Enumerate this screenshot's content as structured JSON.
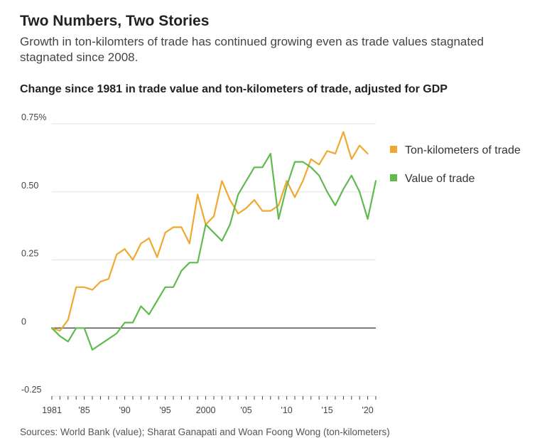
{
  "header": {
    "title": "Two Numbers, Two Stories",
    "subtitle": "Growth in ton-kilomters of trade has continued growing even as trade values stagnated stagnated since 2008."
  },
  "footer": {
    "source": "Sources: World Bank (value); Sharat Ganapati and Woan Foong Wong (ton-kilometers)"
  },
  "colors": {
    "ton_km": "#f0a830",
    "value": "#5fbb4e",
    "zero_line": "#333333",
    "grid": "#e3e3e3"
  },
  "chart_data": {
    "type": "line",
    "title": "Change since 1981 in trade value and ton-kilometers of trade, adjusted for GDP",
    "xlabel": "",
    "ylabel": "",
    "xlim": [
      1981,
      2021
    ],
    "ylim": [
      -0.25,
      0.75
    ],
    "y_ticks": [
      {
        "value": 0.75,
        "label": "0.75%"
      },
      {
        "value": 0.5,
        "label": "0.50"
      },
      {
        "value": 0.25,
        "label": "0.25"
      },
      {
        "value": 0,
        "label": "0"
      },
      {
        "value": -0.25,
        "label": "-0.25"
      }
    ],
    "x_ticks": [
      {
        "value": 1981,
        "label": "1981"
      },
      {
        "value": 1985,
        "label": "'85"
      },
      {
        "value": 1990,
        "label": "'90"
      },
      {
        "value": 1995,
        "label": "'95"
      },
      {
        "value": 2000,
        "label": "2000"
      },
      {
        "value": 2005,
        "label": "'05"
      },
      {
        "value": 2010,
        "label": "'10"
      },
      {
        "value": 2015,
        "label": "'15"
      },
      {
        "value": 2020,
        "label": "'20"
      }
    ],
    "grid": true,
    "legend_position": "right",
    "series": [
      {
        "name": "Ton-kilometers of trade",
        "color_key": "ton_km",
        "x": [
          1981,
          1982,
          1983,
          1984,
          1985,
          1986,
          1987,
          1988,
          1989,
          1990,
          1991,
          1992,
          1993,
          1994,
          1995,
          1996,
          1997,
          1998,
          1999,
          2000,
          2001,
          2002,
          2003,
          2004,
          2005,
          2006,
          2007,
          2008,
          2009,
          2010,
          2011,
          2012,
          2013,
          2014,
          2015,
          2016,
          2017,
          2018,
          2019,
          2020
        ],
        "values": [
          0.0,
          -0.01,
          0.03,
          0.15,
          0.15,
          0.14,
          0.17,
          0.18,
          0.27,
          0.29,
          0.25,
          0.31,
          0.33,
          0.26,
          0.35,
          0.37,
          0.37,
          0.31,
          0.49,
          0.38,
          0.41,
          0.54,
          0.47,
          0.42,
          0.44,
          0.47,
          0.43,
          0.43,
          0.45,
          0.54,
          0.48,
          0.54,
          0.62,
          0.6,
          0.65,
          0.64,
          0.72,
          0.62,
          0.67,
          0.64
        ]
      },
      {
        "name": "Value of trade",
        "color_key": "value",
        "x": [
          1981,
          1982,
          1983,
          1984,
          1985,
          1986,
          1987,
          1988,
          1989,
          1990,
          1991,
          1992,
          1993,
          1994,
          1995,
          1996,
          1997,
          1998,
          1999,
          2000,
          2001,
          2002,
          2003,
          2004,
          2005,
          2006,
          2007,
          2008,
          2009,
          2010,
          2011,
          2012,
          2013,
          2014,
          2015,
          2016,
          2017,
          2018,
          2019,
          2020,
          2021
        ],
        "values": [
          0.0,
          -0.03,
          -0.05,
          0.0,
          0.0,
          -0.08,
          -0.06,
          -0.04,
          -0.02,
          0.02,
          0.02,
          0.08,
          0.05,
          0.1,
          0.15,
          0.15,
          0.21,
          0.24,
          0.24,
          0.38,
          0.35,
          0.32,
          0.38,
          0.49,
          0.54,
          0.59,
          0.59,
          0.64,
          0.4,
          0.52,
          0.61,
          0.61,
          0.59,
          0.56,
          0.5,
          0.45,
          0.51,
          0.56,
          0.5,
          0.4,
          0.54
        ]
      }
    ]
  }
}
